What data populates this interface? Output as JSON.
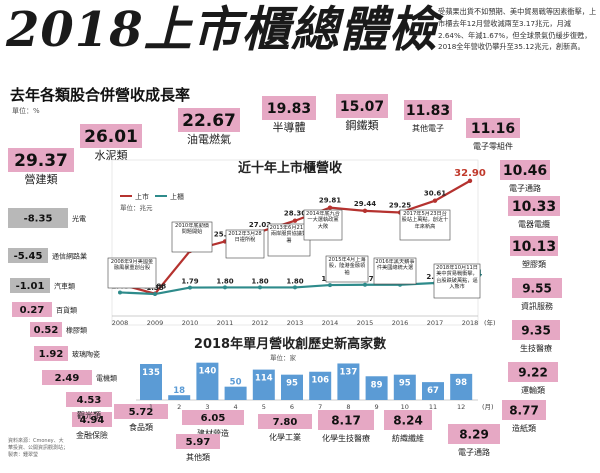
{
  "header": {
    "title": "2018上市櫃總體檢",
    "desc": "受蘋果出貨不如預期、美中貿易戰等因素衝擊，上市櫃去年12月營收減兩至3.17兆元，月減2.64%、年減1.67%，但全球景氣仍緩步復甦，2018全年營收仍攀升至35.12兆元，創新高。"
  },
  "industry": {
    "subtitle": "去年各類股合併營收成長率",
    "unit": "單位：%",
    "color_pos": "#e6a8c4",
    "color_neg": "#b8b8b8"
  },
  "chart_data": [
    {
      "type": "bar",
      "title": "去年各類股合併營收成長率",
      "unit": "單位：%",
      "categories": [
        "營建類",
        "水泥類",
        "油電燃氣",
        "半導體",
        "鋼鐵類",
        "其他電子",
        "電子零組件",
        "電子通路",
        "電器電纜",
        "塑膠類",
        "資訊服務",
        "生技醫療",
        "運輸類",
        "造紙類",
        "化學生技醫療",
        "紡織纖維",
        "化學工業",
        "電子通路",
        "建材營造",
        "食品類",
        "其他類",
        "金融保險",
        "觀光類",
        "電機類",
        "玻璃陶瓷",
        "橡膠類",
        "百貨類",
        "汽車類",
        "通信網路業",
        "光電"
      ],
      "values": [
        29.37,
        26.01,
        22.67,
        19.83,
        15.07,
        11.83,
        11.16,
        10.46,
        10.33,
        10.13,
        9.55,
        9.35,
        9.22,
        8.77,
        8.17,
        8.24,
        7.8,
        8.29,
        6.05,
        5.72,
        5.97,
        4.94,
        4.53,
        2.49,
        1.92,
        0.52,
        0.27,
        -1.01,
        -5.45,
        -8.35
      ]
    },
    {
      "type": "line",
      "title": "近十年上市櫃營收",
      "unit": "單位：兆元",
      "x": [
        "2008",
        "2009",
        "2010",
        "2011",
        "2012",
        "2013",
        "2014",
        "2015",
        "2016",
        "2017",
        "2018"
      ],
      "xunit": "(年)",
      "series": [
        {
          "name": "上市",
          "values": [
            20.98,
            19.88,
            24.81,
            25.91,
            27.02,
            28.3,
            29.81,
            29.44,
            29.25,
            30.61,
            32.9
          ]
        },
        {
          "name": "上櫃",
          "values": [
            1.48,
            1.38,
            1.79,
            1.8,
            1.8,
            1.8,
            1.95,
            1.97,
            1.97,
            2.08,
            2.24
          ]
        }
      ],
      "annotations": [
        "2008年9月美國金融風暴重創台股",
        "2010年底勤價問題開始",
        "2012年3月28日證所稅",
        "2013年6月21日兩岸服貿協議簽署",
        "2014年底九合一大選執政黨大敗",
        "2015年4月上海股，陸港金融領袖",
        "2016年黑天鵝事件美國總統大選",
        "2017年5月23日台股站上萬點，創近十年來新高",
        "2018年10月11日美中貿易戰衝擊，台股跌破萬點，逼入熊市"
      ]
    },
    {
      "type": "bar",
      "title": "2018年單月營收創歷史新高家數",
      "unit": "單位：家",
      "categories": [
        "1",
        "2",
        "3",
        "4",
        "5",
        "6",
        "7",
        "8",
        "9",
        "10",
        "11",
        "12"
      ],
      "xunit": "(月)",
      "values": [
        135,
        18,
        140,
        50,
        114,
        95,
        106,
        137,
        89,
        95,
        67,
        98
      ],
      "ylim": [
        0,
        150
      ]
    }
  ],
  "source": "資料來源：Cmoney、大華投資、公開資訊觀測站；製表：鍾翠瑩"
}
